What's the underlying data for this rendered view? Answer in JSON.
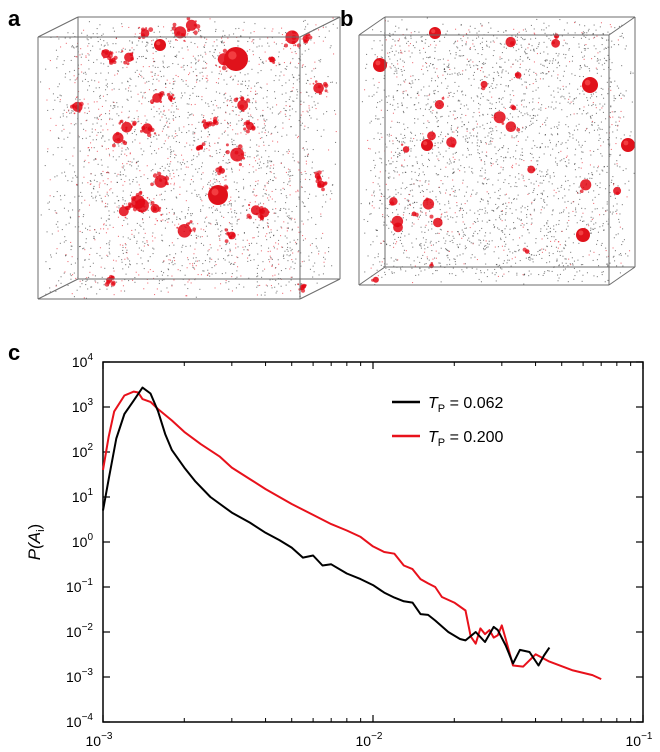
{
  "panels": {
    "a": "a",
    "b": "b",
    "c": "c"
  },
  "colors": {
    "black_series": "#000000",
    "red_series": "#e8111b",
    "cube_edge": "#6d6d6d",
    "particle_red": "#e30613"
  },
  "chart_data": {
    "type": "line",
    "xscale": "log",
    "yscale": "log",
    "xlim": [
      0.001,
      0.1
    ],
    "ylim": [
      0.0001,
      10000
    ],
    "xlabel": "A",
    "xlabel_sub": "i",
    "ylabel": "P(A",
    "ylabel_sub": "i",
    "ylabel_close": ")",
    "x_ticks": [
      {
        "value": 0.001,
        "base": "10",
        "exp": "−3"
      },
      {
        "value": 0.01,
        "base": "10",
        "exp": "−2"
      },
      {
        "value": 0.1,
        "base": "10",
        "exp": "−1"
      }
    ],
    "y_ticks": [
      {
        "value": 10000,
        "base": "10",
        "exp": "4"
      },
      {
        "value": 1000,
        "base": "10",
        "exp": "3"
      },
      {
        "value": 100,
        "base": "10",
        "exp": "2"
      },
      {
        "value": 10,
        "base": "10",
        "exp": "1"
      },
      {
        "value": 1,
        "base": "10",
        "exp": "0"
      },
      {
        "value": 0.1,
        "base": "10",
        "exp": "−1"
      },
      {
        "value": 0.01,
        "base": "10",
        "exp": "−2"
      },
      {
        "value": 0.001,
        "base": "10",
        "exp": "−3"
      },
      {
        "value": 0.0001,
        "base": "10",
        "exp": "−4"
      }
    ],
    "legend_position": "top-right",
    "series": [
      {
        "name": "T",
        "name_sub": "P",
        "name_value": " = 0.062",
        "color": "#000000",
        "points": [
          [
            0.001,
            5
          ],
          [
            0.00105,
            25
          ],
          [
            0.00112,
            200
          ],
          [
            0.0012,
            700
          ],
          [
            0.0013,
            1400
          ],
          [
            0.0014,
            2700
          ],
          [
            0.0015,
            2000
          ],
          [
            0.0016,
            800
          ],
          [
            0.0017,
            250
          ],
          [
            0.0018,
            110
          ],
          [
            0.002,
            45
          ],
          [
            0.0022,
            22
          ],
          [
            0.0025,
            10
          ],
          [
            0.003,
            4.5
          ],
          [
            0.0035,
            2.7
          ],
          [
            0.004,
            1.6
          ],
          [
            0.0045,
            1.1
          ],
          [
            0.005,
            0.75
          ],
          [
            0.0055,
            0.45
          ],
          [
            0.006,
            0.5
          ],
          [
            0.0065,
            0.3
          ],
          [
            0.007,
            0.32
          ],
          [
            0.008,
            0.2
          ],
          [
            0.009,
            0.15
          ],
          [
            0.01,
            0.11
          ],
          [
            0.011,
            0.075
          ],
          [
            0.012,
            0.058
          ],
          [
            0.013,
            0.048
          ],
          [
            0.014,
            0.045
          ],
          [
            0.015,
            0.025
          ],
          [
            0.016,
            0.024
          ],
          [
            0.017,
            0.018
          ],
          [
            0.019,
            0.01
          ],
          [
            0.021,
            0.007
          ],
          [
            0.022,
            0.0065
          ],
          [
            0.024,
            0.01
          ],
          [
            0.026,
            0.006
          ],
          [
            0.028,
            0.013
          ],
          [
            0.029,
            0.011
          ],
          [
            0.031,
            0.005
          ],
          [
            0.033,
            0.002
          ],
          [
            0.035,
            0.004
          ],
          [
            0.038,
            0.0036
          ],
          [
            0.041,
            0.0018
          ],
          [
            0.043,
            0.003
          ],
          [
            0.045,
            0.0045
          ]
        ]
      },
      {
        "name": "T",
        "name_sub": "P",
        "name_value": " = 0.200",
        "color": "#e8111b",
        "points": [
          [
            0.001,
            40
          ],
          [
            0.00105,
            220
          ],
          [
            0.0011,
            800
          ],
          [
            0.0012,
            1800
          ],
          [
            0.0013,
            2200
          ],
          [
            0.00135,
            2100
          ],
          [
            0.0014,
            1500
          ],
          [
            0.0015,
            1300
          ],
          [
            0.0016,
            900
          ],
          [
            0.0018,
            500
          ],
          [
            0.002,
            280
          ],
          [
            0.0023,
            150
          ],
          [
            0.0027,
            80
          ],
          [
            0.003,
            45
          ],
          [
            0.0035,
            25
          ],
          [
            0.004,
            15
          ],
          [
            0.005,
            7
          ],
          [
            0.006,
            4
          ],
          [
            0.007,
            2.5
          ],
          [
            0.008,
            1.8
          ],
          [
            0.009,
            1.3
          ],
          [
            0.01,
            0.8
          ],
          [
            0.011,
            0.6
          ],
          [
            0.012,
            0.55
          ],
          [
            0.013,
            0.3
          ],
          [
            0.014,
            0.25
          ],
          [
            0.015,
            0.15
          ],
          [
            0.016,
            0.12
          ],
          [
            0.017,
            0.1
          ],
          [
            0.018,
            0.06
          ],
          [
            0.02,
            0.045
          ],
          [
            0.022,
            0.03
          ],
          [
            0.023,
            0.008
          ],
          [
            0.024,
            0.0055
          ],
          [
            0.025,
            0.012
          ],
          [
            0.026,
            0.009
          ],
          [
            0.027,
            0.011
          ],
          [
            0.028,
            0.0075
          ],
          [
            0.029,
            0.0085
          ],
          [
            0.03,
            0.014
          ],
          [
            0.031,
            0.007
          ],
          [
            0.033,
            0.0018
          ],
          [
            0.036,
            0.0017
          ],
          [
            0.04,
            0.0032
          ],
          [
            0.045,
            0.0022
          ],
          [
            0.055,
            0.0014
          ],
          [
            0.065,
            0.0011
          ],
          [
            0.07,
            0.0009
          ]
        ]
      }
    ]
  }
}
